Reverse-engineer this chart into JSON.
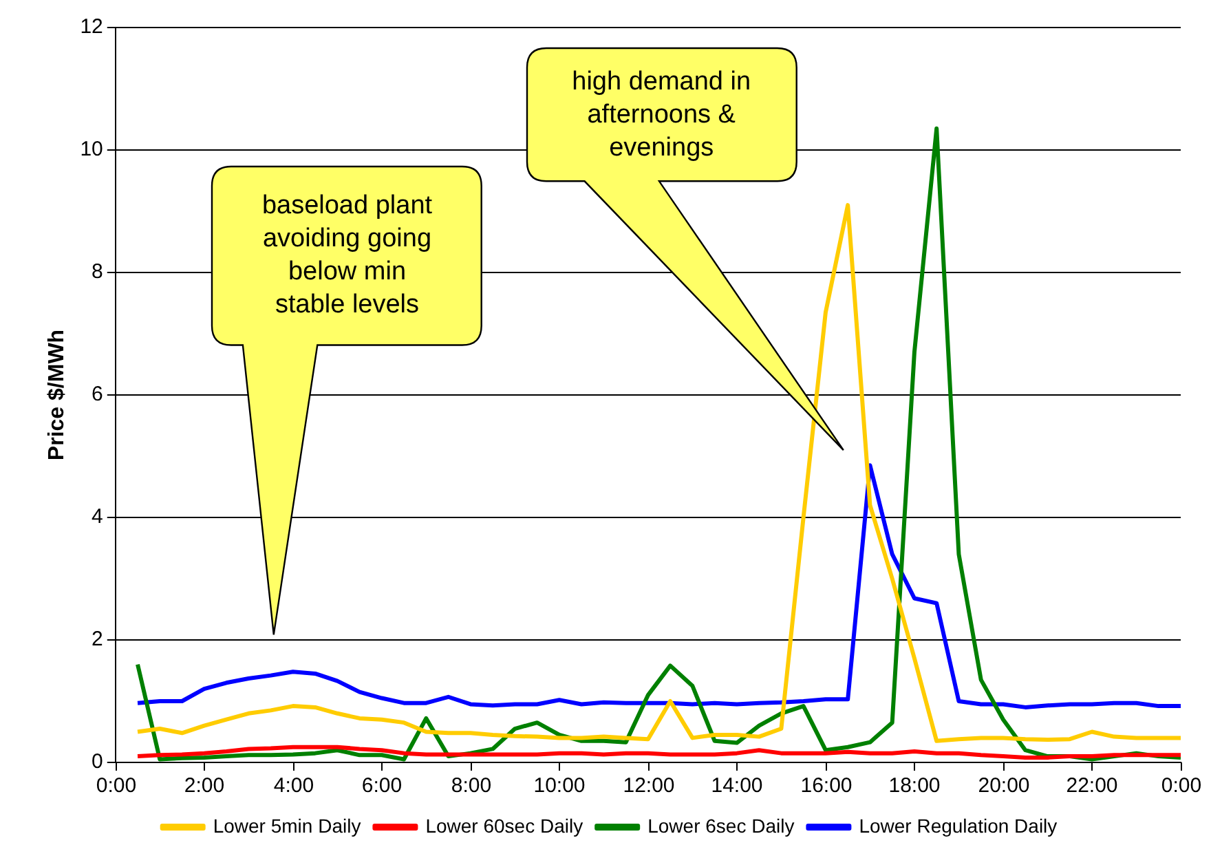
{
  "chart_data": {
    "type": "line",
    "ylabel": "Price $/MWh",
    "x": [
      0.5,
      1,
      1.5,
      2,
      2.5,
      3,
      3.5,
      4,
      4.5,
      5,
      5.5,
      6,
      6.5,
      7,
      7.5,
      8,
      8.5,
      9,
      9.5,
      10,
      10.5,
      11,
      11.5,
      12,
      12.5,
      13,
      13.5,
      14,
      14.5,
      15,
      15.5,
      16,
      16.5,
      17,
      17.5,
      18,
      18.5,
      19,
      19.5,
      20,
      20.5,
      21,
      21.5,
      22,
      22.5,
      23,
      23.5,
      24
    ],
    "xlim": [
      0,
      24
    ],
    "xticks": [
      {
        "value": 0,
        "label": "0:00"
      },
      {
        "value": 2,
        "label": "2:00"
      },
      {
        "value": 4,
        "label": "4:00"
      },
      {
        "value": 6,
        "label": "6:00"
      },
      {
        "value": 8,
        "label": "8:00"
      },
      {
        "value": 10,
        "label": "10:00"
      },
      {
        "value": 12,
        "label": "12:00"
      },
      {
        "value": 14,
        "label": "14:00"
      },
      {
        "value": 16,
        "label": "16:00"
      },
      {
        "value": 18,
        "label": "18:00"
      },
      {
        "value": 20,
        "label": "20:00"
      },
      {
        "value": 22,
        "label": "22:00"
      },
      {
        "value": 24,
        "label": "0:00"
      }
    ],
    "ylim": [
      0,
      12
    ],
    "yticks": [
      0,
      2,
      4,
      6,
      8,
      10,
      12
    ],
    "grid": "y",
    "legend": "bottom",
    "marker": "none",
    "line_style": "solid",
    "series": [
      {
        "name": "Lower 5min Daily",
        "color": "#ffcc00",
        "values": [
          0.5,
          0.55,
          0.48,
          0.6,
          0.7,
          0.8,
          0.85,
          0.92,
          0.9,
          0.8,
          0.72,
          0.7,
          0.65,
          0.5,
          0.48,
          0.48,
          0.45,
          0.43,
          0.42,
          0.4,
          0.4,
          0.42,
          0.4,
          0.38,
          1.0,
          0.4,
          0.45,
          0.45,
          0.42,
          0.55,
          4.0,
          7.35,
          9.1,
          4.2,
          3.0,
          1.7,
          0.35,
          0.38,
          0.4,
          0.4,
          0.38,
          0.37,
          0.38,
          0.5,
          0.42,
          0.4,
          0.4,
          0.4
        ]
      },
      {
        "name": "Lower 60sec Daily",
        "color": "#ff0000",
        "values": [
          0.1,
          0.12,
          0.13,
          0.15,
          0.18,
          0.22,
          0.23,
          0.25,
          0.25,
          0.25,
          0.22,
          0.2,
          0.15,
          0.13,
          0.13,
          0.13,
          0.13,
          0.13,
          0.13,
          0.15,
          0.15,
          0.13,
          0.15,
          0.15,
          0.13,
          0.13,
          0.13,
          0.15,
          0.2,
          0.15,
          0.15,
          0.15,
          0.17,
          0.15,
          0.15,
          0.18,
          0.15,
          0.15,
          0.12,
          0.1,
          0.08,
          0.08,
          0.1,
          0.1,
          0.12,
          0.12,
          0.12,
          0.12
        ]
      },
      {
        "name": "Lower 6sec Daily",
        "color": "#008000",
        "values": [
          1.6,
          0.05,
          0.07,
          0.08,
          0.1,
          0.12,
          0.12,
          0.13,
          0.15,
          0.2,
          0.12,
          0.12,
          0.05,
          0.72,
          0.1,
          0.15,
          0.22,
          0.55,
          0.65,
          0.45,
          0.35,
          0.35,
          0.33,
          1.1,
          1.58,
          1.25,
          0.35,
          0.32,
          0.6,
          0.8,
          0.92,
          0.2,
          0.25,
          0.33,
          0.65,
          6.7,
          10.35,
          3.4,
          1.35,
          0.7,
          0.2,
          0.1,
          0.1,
          0.05,
          0.1,
          0.15,
          0.1,
          0.08
        ]
      },
      {
        "name": "Lower Regulation Daily",
        "color": "#0000ff",
        "values": [
          0.97,
          1.0,
          1.0,
          1.2,
          1.3,
          1.37,
          1.42,
          1.48,
          1.45,
          1.33,
          1.15,
          1.05,
          0.97,
          0.97,
          1.07,
          0.95,
          0.93,
          0.95,
          0.95,
          1.02,
          0.95,
          0.98,
          0.97,
          0.97,
          0.97,
          0.95,
          0.97,
          0.95,
          0.97,
          0.98,
          1.0,
          1.03,
          1.03,
          4.85,
          3.4,
          2.68,
          2.6,
          1.0,
          0.95,
          0.95,
          0.9,
          0.93,
          0.95,
          0.95,
          0.97,
          0.97,
          0.92,
          0.92
        ]
      }
    ],
    "annotations": [
      "baseload plant avoiding going below min stable levels",
      "high demand in afternoons & evenings"
    ]
  }
}
